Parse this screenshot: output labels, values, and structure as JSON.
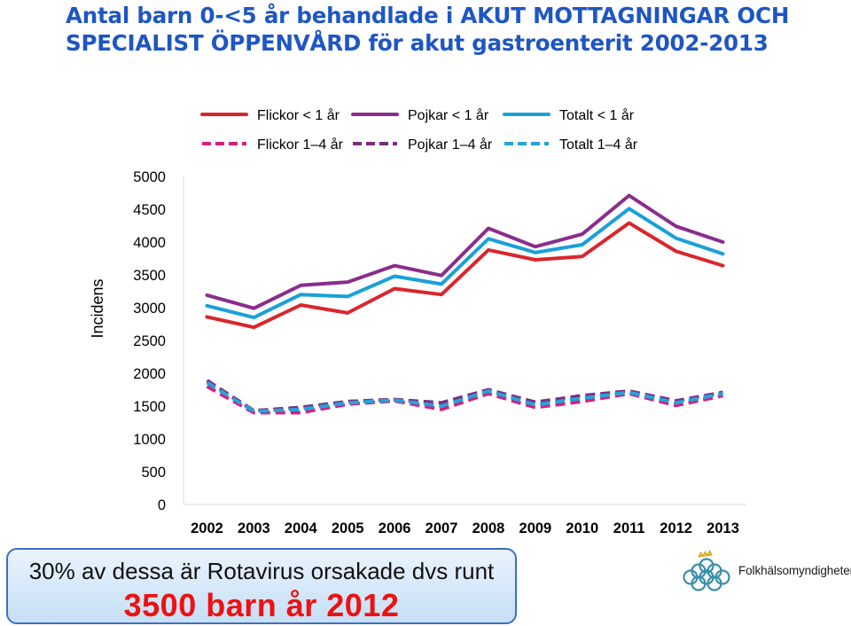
{
  "header": {
    "title_line1": "Antal barn 0-<5 år behandlade i  AKUT MOTTAGNINGAR OCH",
    "title_line2": "SPECIALIST ÖPPENVÅRD för akut gastroenterit 2002-2013"
  },
  "chart_data": {
    "type": "line",
    "title": "",
    "xlabel": "",
    "ylabel": "Incidens",
    "x": [
      "2002",
      "2003",
      "2004",
      "2005",
      "2006",
      "2007",
      "2008",
      "2009",
      "2010",
      "2011",
      "2012",
      "2013"
    ],
    "ylim": [
      0,
      5000
    ],
    "yticks": [
      0,
      500,
      1000,
      1500,
      2000,
      2500,
      3000,
      3500,
      4000,
      4500,
      5000
    ],
    "grid": false,
    "legend_position": "top",
    "series": [
      {
        "name": "Flickor < 1 år",
        "color": "#d9262c",
        "dash": false,
        "values": [
          2860,
          2700,
          3040,
          2920,
          3290,
          3200,
          3880,
          3730,
          3780,
          4290,
          3860,
          3640
        ]
      },
      {
        "name": "Pojkar < 1 år",
        "color": "#8a2d8c",
        "dash": false,
        "values": [
          3190,
          2990,
          3340,
          3390,
          3640,
          3490,
          4210,
          3930,
          4120,
          4710,
          4240,
          4000
        ]
      },
      {
        "name": "Totalt < 1 år",
        "color": "#1aa0d8",
        "dash": false,
        "values": [
          3030,
          2850,
          3200,
          3170,
          3480,
          3360,
          4050,
          3840,
          3960,
          4510,
          4060,
          3820
        ]
      },
      {
        "name": "Flickor 1–4 år",
        "color": "#d61f80",
        "dash": true,
        "values": [
          1800,
          1400,
          1400,
          1530,
          1580,
          1450,
          1690,
          1480,
          1570,
          1690,
          1510,
          1660
        ]
      },
      {
        "name": "Pojkar 1–4 år",
        "color": "#7b2c82",
        "dash": true,
        "values": [
          1890,
          1430,
          1480,
          1570,
          1600,
          1550,
          1750,
          1560,
          1660,
          1730,
          1580,
          1710
        ]
      },
      {
        "name": "Totalt 1–4 år",
        "color": "#23a3dc",
        "dash": true,
        "values": [
          1860,
          1420,
          1450,
          1550,
          1590,
          1500,
          1730,
          1520,
          1620,
          1710,
          1550,
          1690
        ]
      }
    ]
  },
  "callout": {
    "line1": "30% av dessa är Rotavirus orsakade dvs runt",
    "line2": "3500 barn år 2012"
  },
  "logo": {
    "org_name": "Folkhälsomyndigheten",
    "icon": "knot-crown-logo-icon"
  }
}
